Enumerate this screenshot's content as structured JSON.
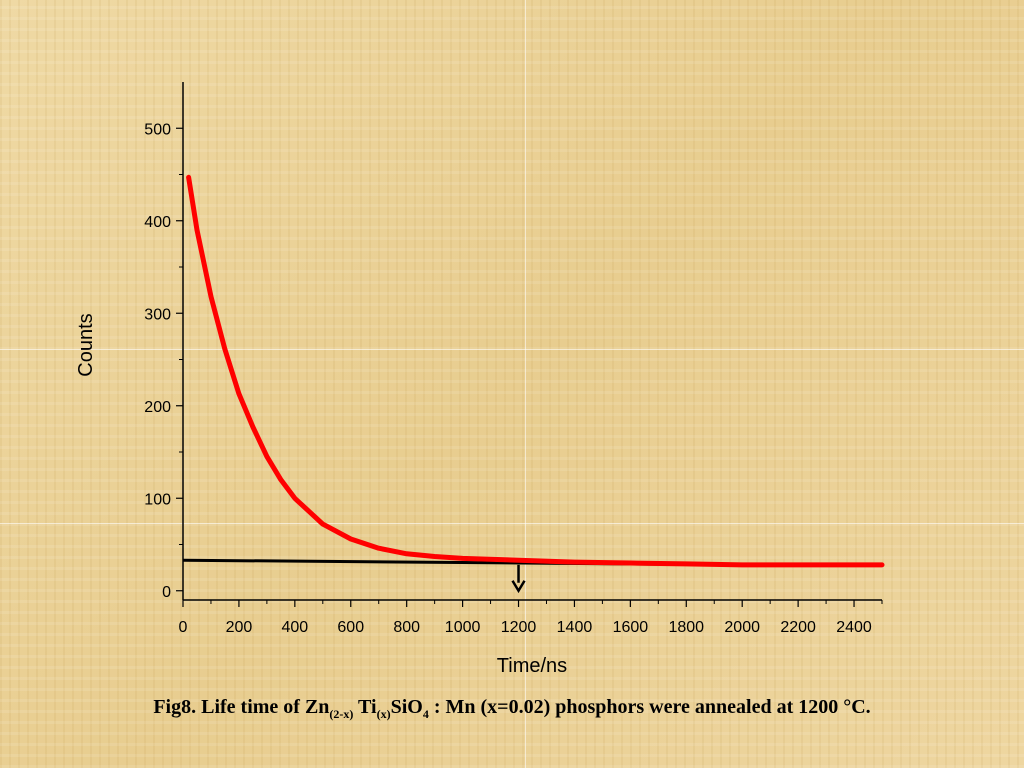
{
  "chart_data": {
    "type": "line",
    "xlabel": "Time/ns",
    "ylabel": "Counts",
    "xlim": [
      0,
      2500
    ],
    "ylim": [
      -10,
      550
    ],
    "xticks": [
      "0",
      "200",
      "400",
      "600",
      "800",
      "1000",
      "1200",
      "1400",
      "1600",
      "1800",
      "2000",
      "2200",
      "2400"
    ],
    "yticks": [
      "0",
      "100",
      "200",
      "300",
      "400",
      "500"
    ],
    "series": [
      {
        "color": "#ff0000",
        "x": [
          20,
          50,
          100,
          150,
          200,
          250,
          300,
          350,
          400,
          450,
          500,
          600,
          700,
          800,
          900,
          1000,
          1200,
          1400,
          1600,
          1800,
          2000,
          2200,
          2400,
          2500
        ],
        "y": [
          447,
          390,
          318,
          261,
          213,
          177,
          145,
          120,
          100,
          86,
          72,
          56,
          46,
          40,
          37,
          35,
          33,
          31,
          30,
          29,
          28,
          28,
          28,
          28
        ]
      }
    ],
    "reference_line": {
      "x": [
        0,
        2000
      ],
      "y": [
        33,
        28
      ],
      "color": "#000000"
    },
    "marker_arrow": {
      "x": 1200,
      "y_from": 28,
      "y_to": 0
    },
    "grid": false
  },
  "caption": {
    "p1": "Fig8. Life time of Zn",
    "s1": "(2-x)",
    "p2": " Ti",
    "s2": "(x)",
    "p3": "SiO",
    "s3": "4",
    "p4": " : Mn (x=0.02) phosphors were annealed at 1200 °C."
  }
}
